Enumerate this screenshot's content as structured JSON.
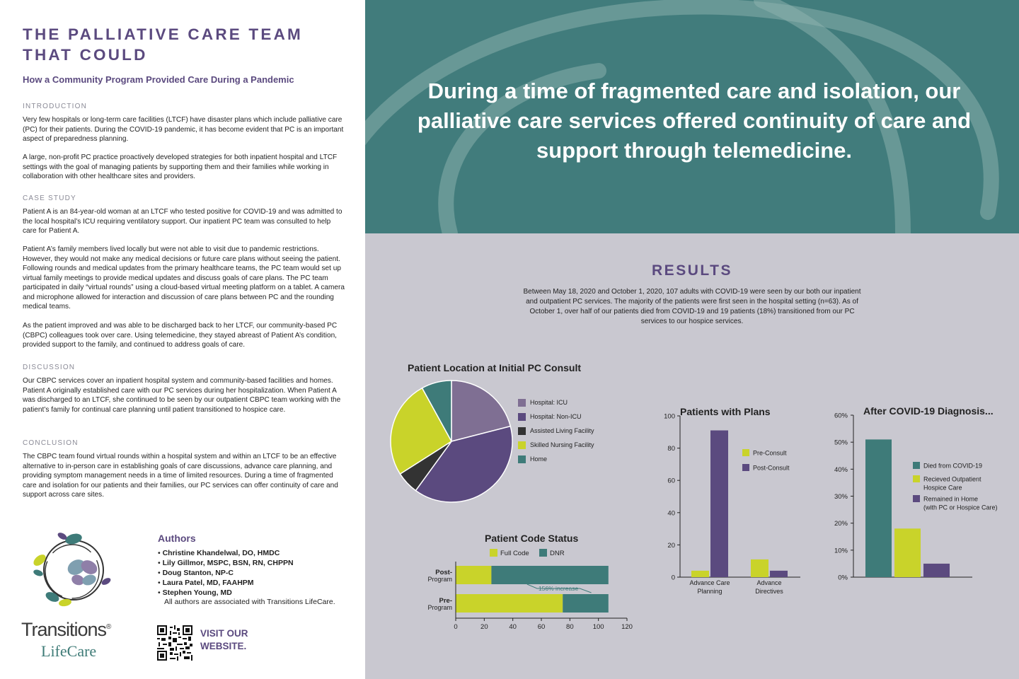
{
  "poster": {
    "title_line1": "THE PALLIATIVE CARE TEAM",
    "title_line2": "THAT COULD",
    "subtitle": "How a Community Program Provided Care During a Pandemic",
    "banner": "During a time of fragmented care and isolation, our palliative care services offered continuity of care and support through telemedicine."
  },
  "sections": {
    "intro_h": "INTRODUCTION",
    "intro_p1": "Very few hospitals or long-term care facilities (LTCF) have disaster plans which include palliative care (PC) for their patients. During the COVID-19 pandemic, it has become evident that PC is an important aspect of preparedness planning.",
    "intro_p2": "A large, non-profit PC practice proactively developed strategies for both inpatient hospital and LTCF settings with the goal of managing patients by supporting them and their families while working in collaboration with other healthcare sites and providers.",
    "case_h": "CASE STUDY",
    "case_p1": "Patient A is an 84-year-old woman at an LTCF who tested positive for COVID-19 and was admitted to the local hospital’s ICU requiring ventilatory support. Our inpatient PC team was consulted to help care for Patient A.",
    "case_p2": "Patient A’s family members lived locally but were not able to visit due to pandemic restrictions. However, they would not make any medical decisions or future care plans without seeing the patient. Following rounds and medical updates from the primary healthcare teams, the PC team would set up virtual family meetings to provide medical updates and discuss goals of care plans. The PC team participated in daily “virtual rounds” using a cloud-based virtual meeting platform on a tablet. A camera and microphone allowed for interaction and discussion of care plans between PC and the rounding medical teams.",
    "case_p3": "As the patient improved and was able to be discharged back to her LTCF, our community-based PC (CBPC) colleagues took over care. Using telemedicine, they stayed abreast of Patient A’s condition, provided support to the family, and continued to address goals of care.",
    "disc_h": "DISCUSSION",
    "disc_p1": "Our CBPC services cover an inpatient hospital system and community-based facilities and homes. Patient A originally established care with our PC services during her hospitalization. When Patient A was discharged to an LTCF, she continued to be seen by our outpatient CBPC team working with the patient’s family for continual care planning until patient transitioned to hospice care.",
    "conc_h": "CONCLUSION",
    "conc_p1": "The CBPC team found virtual rounds within a hospital system and within an LTCF to be an effective alternative to in-person care in establishing goals of care discussions, advance care planning, and providing symptom management needs in a time of limited resources. During a time of fragmented care and isolation for our patients and their families, our PC services can offer continuity of care and support across care sites."
  },
  "authors": {
    "heading": "Authors",
    "list": [
      "Christine Khandelwal, DO, HMDC",
      "Lily Gillmor, MSPC, BSN, RN, CHPPN",
      "Doug Stanton, NP-C",
      "Laura Patel, MD, FAAHPM",
      "Stephen Young, MD"
    ],
    "note": "All authors are associated with Transitions LifeCare.",
    "visit_line1": "VISIT OUR",
    "visit_line2": "WEBSITE.",
    "brand_line1": "Transitions",
    "brand_reg": "®",
    "brand_line2": "LifeCare"
  },
  "results": {
    "heading": "RESULTS",
    "text": "Between May 18, 2020 and October 1, 2020, 107 adults with COVID-19 were seen by our both our inpatient and outpatient PC services. The majority of the patients were first seen in the hospital setting (n=63). As of October 1, over half of our patients died from COVID-19 and 19 patients (18%) transitioned from our PC services to our hospice services."
  },
  "colors": {
    "purple": "#5b4a7f",
    "teal": "#417c7c",
    "chart_teal": "#3e7b79",
    "lime": "#c9d32a",
    "dark": "#333333",
    "mauve": "#7f6f93",
    "panel": "#c9c8d0"
  },
  "chart_data": [
    {
      "type": "pie",
      "title": "Patient Location at Initial PC Consult",
      "categories": [
        "Hospital: ICU",
        "Hospital: Non-ICU",
        "Assisted Living Facility",
        "Skilled Nursing Facility",
        "Home"
      ],
      "values": [
        21,
        39,
        6,
        26,
        8
      ],
      "colors": [
        "#7f6f93",
        "#5b4a7f",
        "#333333",
        "#c9d32a",
        "#3e7b79"
      ]
    },
    {
      "type": "bar",
      "orientation": "horizontal",
      "stacked": true,
      "title": "Patient Code Status",
      "categories": [
        "Post-Program",
        "Pre-Program"
      ],
      "category_labels": [
        [
          "Post-",
          "Program"
        ],
        [
          "Pre-",
          "Program"
        ]
      ],
      "series": [
        {
          "name": "Full Code",
          "values": [
            25,
            75
          ],
          "color": "#c9d32a"
        },
        {
          "name": "DNR",
          "values": [
            82,
            32
          ],
          "color": "#3e7b79"
        }
      ],
      "xlim": [
        0,
        120
      ],
      "xticks": [
        0,
        20,
        40,
        60,
        80,
        100,
        120
      ],
      "annotation": "156% increase"
    },
    {
      "type": "bar",
      "title": "Patients with Plans",
      "categories": [
        "Advance Care Planning",
        "Advance Directives"
      ],
      "category_labels": [
        [
          "Advance Care",
          "Planning"
        ],
        [
          "Advance",
          "Directives"
        ]
      ],
      "series": [
        {
          "name": "Pre-Consult",
          "values": [
            4,
            11
          ],
          "color": "#c9d32a"
        },
        {
          "name": "Post-Consult",
          "values": [
            91,
            4
          ],
          "color": "#5b4a7f"
        }
      ],
      "ylim": [
        0,
        100
      ],
      "yticks": [
        0,
        20,
        40,
        60,
        80,
        100
      ]
    },
    {
      "type": "bar",
      "title": "After COVID-19 Diagnosis...",
      "categories": [
        "Died from COVID-19",
        "Recieved Outpatient Hospice Care",
        "Remained in Home (with PC or Hospice Care)"
      ],
      "legend_labels": [
        [
          "Died from COVID-19"
        ],
        [
          "Recieved Outpatient",
          "Hospice Care"
        ],
        [
          "Remained in Home",
          "(with PC or Hospice Care)"
        ]
      ],
      "values": [
        51,
        18,
        5
      ],
      "colors": [
        "#3e7b79",
        "#c9d32a",
        "#5b4a7f"
      ],
      "ylim": [
        0,
        60
      ],
      "yticks": [
        "0%",
        "10%",
        "20%",
        "30%",
        "40%",
        "50%",
        "60%"
      ]
    }
  ]
}
